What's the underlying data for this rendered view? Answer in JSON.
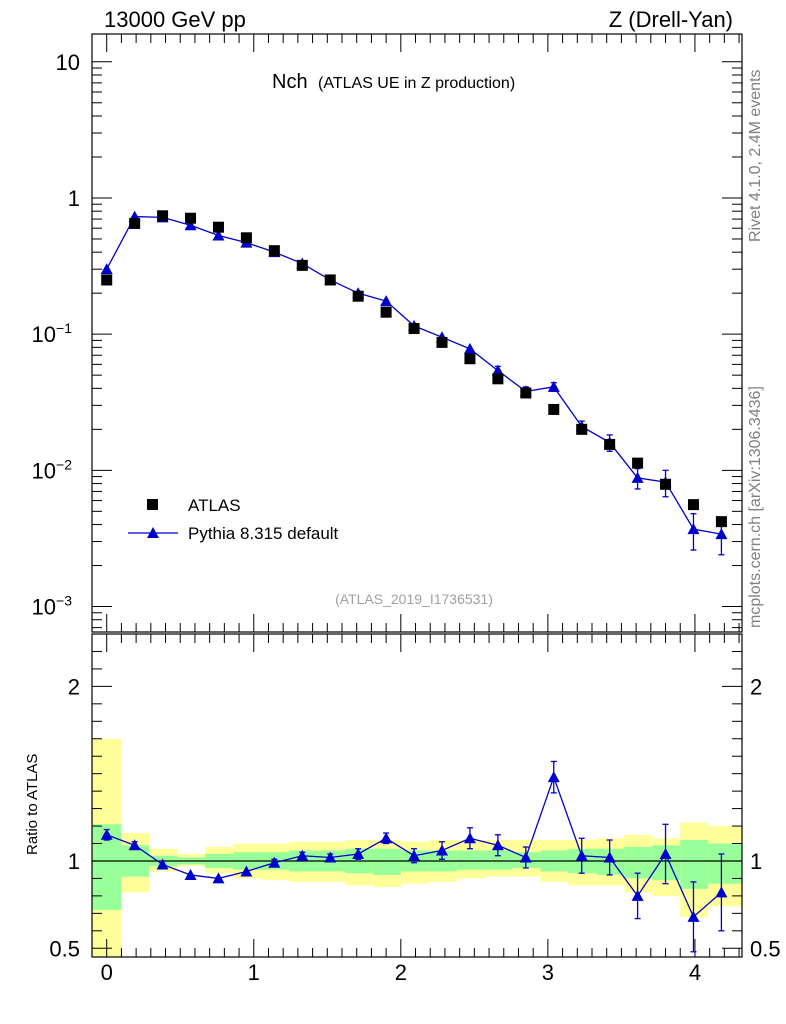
{
  "header": {
    "left": "13000 GeV pp",
    "right": "Z (Drell-Yan)"
  },
  "side_labels": {
    "top": "Rivet 4.1.0,  2.4M events",
    "bottom": "mcplots.cern.ch [arXiv:1306.3436]"
  },
  "chart_data": [
    {
      "type": "scatter",
      "panel": "main",
      "title_main": "Nch",
      "title_sub": "(ATLAS UE in Z production)",
      "analysis_id": "(ATLAS_2019_I1736531)",
      "yscale": "log",
      "ylim": [
        0.00065,
        16
      ],
      "xlim": [
        -0.1,
        4.32
      ],
      "y_ticks": [
        {
          "value": 10,
          "base": "10",
          "exp": ""
        },
        {
          "value": 1,
          "base": "1",
          "exp": ""
        },
        {
          "value": 0.1,
          "base": "10",
          "exp": "−1"
        },
        {
          "value": 0.01,
          "base": "10",
          "exp": "−2"
        },
        {
          "value": 0.001,
          "base": "10",
          "exp": "−3"
        }
      ],
      "legend_position": "bottom-left",
      "series": [
        {
          "name": "ATLAS",
          "marker": "square",
          "color": "#000000",
          "x": [
            0.0,
            0.19,
            0.38,
            0.57,
            0.76,
            0.95,
            1.14,
            1.33,
            1.52,
            1.71,
            1.9,
            2.09,
            2.28,
            2.47,
            2.66,
            2.85,
            3.04,
            3.23,
            3.42,
            3.61,
            3.8,
            3.99,
            4.18
          ],
          "y": [
            0.25,
            0.65,
            0.74,
            0.71,
            0.61,
            0.51,
            0.41,
            0.32,
            0.25,
            0.19,
            0.145,
            0.11,
            0.087,
            0.066,
            0.047,
            0.037,
            0.028,
            0.02,
            0.0155,
            0.0113,
            0.0079,
            0.0056,
            0.0042
          ]
        },
        {
          "name": "Pythia 8.315 default",
          "marker": "triangle",
          "color": "#0000cc",
          "x": [
            0.0,
            0.19,
            0.38,
            0.57,
            0.76,
            0.95,
            1.14,
            1.33,
            1.52,
            1.71,
            1.9,
            2.09,
            2.28,
            2.47,
            2.66,
            2.85,
            3.04,
            3.23,
            3.42,
            3.61,
            3.8,
            3.99,
            4.18
          ],
          "y": [
            0.3,
            0.73,
            0.72,
            0.63,
            0.53,
            0.47,
            0.4,
            0.33,
            0.25,
            0.2,
            0.175,
            0.115,
            0.095,
            0.078,
            0.054,
            0.038,
            0.041,
            0.021,
            0.016,
            0.0088,
            0.0082,
            0.0037,
            0.0034
          ],
          "err": [
            0.0,
            0.0,
            0.0,
            0.0,
            0.0,
            0.0,
            0.0,
            0.0,
            0.0,
            0.0,
            0.0,
            0.0,
            0.0,
            0.0,
            0.004,
            0.003,
            0.003,
            0.002,
            0.0022,
            0.0015,
            0.0018,
            0.0011,
            0.001
          ]
        }
      ]
    },
    {
      "type": "scatter",
      "panel": "ratio",
      "ylabel": "Ratio to ATLAS",
      "ylim": [
        0.45,
        2.3
      ],
      "xlim": [
        -0.1,
        4.32
      ],
      "y_ticks": [
        {
          "value": 2,
          "label": "2"
        },
        {
          "value": 1,
          "label": "1"
        },
        {
          "value": 0.5,
          "label": "0.5"
        }
      ],
      "x_ticks": [
        {
          "value": 0,
          "label": "0"
        },
        {
          "value": 1,
          "label": "1"
        },
        {
          "value": 2,
          "label": "2"
        },
        {
          "value": 3,
          "label": "3"
        },
        {
          "value": 4,
          "label": "4"
        }
      ],
      "band_edges": [
        -0.1,
        0.1,
        0.29,
        0.48,
        0.67,
        0.86,
        1.05,
        1.24,
        1.43,
        1.62,
        1.81,
        2.0,
        2.19,
        2.38,
        2.57,
        2.76,
        2.95,
        3.14,
        3.33,
        3.52,
        3.71,
        3.9,
        4.09,
        4.32
      ],
      "band_yellow": [
        [
          0.2,
          1.7
        ],
        [
          0.82,
          1.16
        ],
        [
          0.94,
          1.07
        ],
        [
          0.97,
          1.04
        ],
        [
          0.93,
          1.08
        ],
        [
          0.9,
          1.1
        ],
        [
          0.89,
          1.1
        ],
        [
          0.88,
          1.11
        ],
        [
          0.88,
          1.11
        ],
        [
          0.86,
          1.12
        ],
        [
          0.85,
          1.12
        ],
        [
          0.87,
          1.11
        ],
        [
          0.88,
          1.12
        ],
        [
          0.9,
          1.12
        ],
        [
          0.91,
          1.12
        ],
        [
          0.91,
          1.12
        ],
        [
          0.88,
          1.12
        ],
        [
          0.86,
          1.12
        ],
        [
          0.86,
          1.13
        ],
        [
          0.82,
          1.15
        ],
        [
          0.8,
          1.13
        ],
        [
          0.68,
          1.22
        ],
        [
          0.74,
          1.2
        ]
      ],
      "band_green": [
        [
          0.72,
          1.21
        ],
        [
          0.91,
          1.09
        ],
        [
          0.97,
          1.03
        ],
        [
          0.98,
          1.02
        ],
        [
          0.96,
          1.04
        ],
        [
          0.95,
          1.05
        ],
        [
          0.95,
          1.05
        ],
        [
          0.94,
          1.06
        ],
        [
          0.94,
          1.06
        ],
        [
          0.93,
          1.07
        ],
        [
          0.92,
          1.07
        ],
        [
          0.94,
          1.06
        ],
        [
          0.94,
          1.06
        ],
        [
          0.95,
          1.06
        ],
        [
          0.95,
          1.06
        ],
        [
          0.96,
          1.05
        ],
        [
          0.94,
          1.06
        ],
        [
          0.93,
          1.07
        ],
        [
          0.92,
          1.07
        ],
        [
          0.9,
          1.08
        ],
        [
          0.89,
          1.09
        ],
        [
          0.84,
          1.12
        ],
        [
          0.87,
          1.1
        ]
      ],
      "series": [
        {
          "name": "Pythia 8.315 default / ATLAS",
          "color": "#0000cc",
          "x": [
            0.0,
            0.19,
            0.38,
            0.57,
            0.76,
            0.95,
            1.14,
            1.33,
            1.52,
            1.71,
            1.9,
            2.09,
            2.28,
            2.47,
            2.66,
            2.85,
            3.04,
            3.23,
            3.42,
            3.61,
            3.8,
            3.99,
            4.18
          ],
          "y": [
            1.15,
            1.09,
            0.98,
            0.92,
            0.9,
            0.94,
            0.99,
            1.03,
            1.02,
            1.04,
            1.13,
            1.03,
            1.06,
            1.13,
            1.09,
            1.02,
            1.48,
            1.03,
            1.02,
            0.8,
            1.04,
            0.68,
            0.82
          ],
          "err": [
            0.03,
            0.02,
            0.0,
            0.0,
            0.0,
            0.0,
            0.02,
            0.02,
            0.02,
            0.03,
            0.03,
            0.04,
            0.05,
            0.06,
            0.06,
            0.06,
            0.09,
            0.1,
            0.1,
            0.13,
            0.17,
            0.2,
            0.22
          ]
        }
      ]
    }
  ]
}
